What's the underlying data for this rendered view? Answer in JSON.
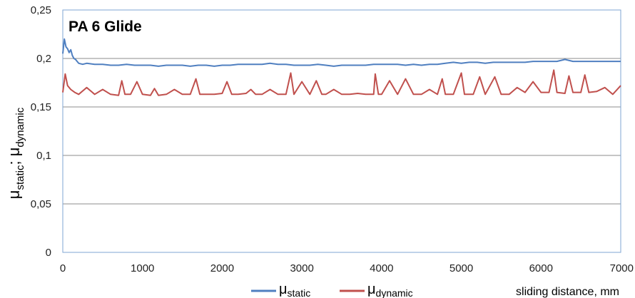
{
  "chart_data": {
    "type": "line",
    "title": "PA 6 Glide",
    "xlabel": "sliding distance, mm",
    "ylabel": {
      "mu": "μ",
      "sub1": "static",
      "sep": "; ",
      "sub2": "dynamic"
    },
    "xlim": [
      0,
      7000
    ],
    "ylim": [
      0,
      0.25
    ],
    "x_ticks": [
      0,
      1000,
      2000,
      3000,
      4000,
      5000,
      6000,
      7000
    ],
    "x_tick_labels": [
      "0",
      "1000",
      "2000",
      "3000",
      "4000",
      "5000",
      "6000",
      "7000"
    ],
    "y_ticks": [
      0,
      0.05,
      0.1,
      0.15,
      0.2,
      0.25
    ],
    "y_tick_labels": [
      "0",
      "0,05",
      "0,1",
      "0,15",
      "0,2",
      "0,25"
    ],
    "grid": "horizontal",
    "legend_position": "bottom",
    "series": [
      {
        "name": "μstatic",
        "name_mu": "μ",
        "name_sub": "static",
        "color": "#4f7fc0",
        "x": [
          0,
          20,
          40,
          60,
          80,
          100,
          120,
          140,
          160,
          180,
          200,
          250,
          300,
          400,
          500,
          600,
          700,
          800,
          900,
          1000,
          1100,
          1200,
          1300,
          1400,
          1500,
          1600,
          1700,
          1800,
          1900,
          2000,
          2100,
          2200,
          2300,
          2400,
          2500,
          2600,
          2700,
          2800,
          2900,
          3000,
          3100,
          3200,
          3300,
          3400,
          3500,
          3600,
          3700,
          3800,
          3900,
          4000,
          4100,
          4200,
          4300,
          4400,
          4500,
          4600,
          4700,
          4800,
          4900,
          5000,
          5100,
          5200,
          5300,
          5400,
          5500,
          5600,
          5700,
          5800,
          5900,
          6000,
          6100,
          6200,
          6300,
          6400,
          6500,
          6600,
          6700,
          6800,
          6900,
          7000
        ],
        "y": [
          0.205,
          0.22,
          0.212,
          0.21,
          0.206,
          0.209,
          0.203,
          0.2,
          0.199,
          0.197,
          0.195,
          0.194,
          0.195,
          0.194,
          0.194,
          0.193,
          0.193,
          0.194,
          0.193,
          0.193,
          0.193,
          0.192,
          0.193,
          0.193,
          0.193,
          0.192,
          0.193,
          0.193,
          0.192,
          0.193,
          0.193,
          0.194,
          0.194,
          0.194,
          0.194,
          0.195,
          0.194,
          0.194,
          0.193,
          0.193,
          0.193,
          0.194,
          0.193,
          0.192,
          0.193,
          0.193,
          0.193,
          0.193,
          0.194,
          0.194,
          0.194,
          0.194,
          0.193,
          0.194,
          0.193,
          0.194,
          0.194,
          0.195,
          0.196,
          0.195,
          0.196,
          0.196,
          0.195,
          0.196,
          0.196,
          0.196,
          0.196,
          0.196,
          0.197,
          0.197,
          0.197,
          0.197,
          0.199,
          0.197,
          0.197,
          0.197,
          0.197,
          0.197,
          0.197,
          0.197
        ]
      },
      {
        "name": "μdynamic",
        "name_mu": "μ",
        "name_sub": "dynamic",
        "color": "#c0504d",
        "x": [
          0,
          30,
          60,
          100,
          150,
          200,
          300,
          400,
          500,
          600,
          700,
          740,
          780,
          850,
          930,
          1000,
          1100,
          1150,
          1200,
          1300,
          1400,
          1500,
          1600,
          1670,
          1720,
          1800,
          1900,
          2000,
          2060,
          2120,
          2200,
          2300,
          2360,
          2420,
          2500,
          2600,
          2700,
          2800,
          2860,
          2900,
          3000,
          3100,
          3180,
          3250,
          3300,
          3400,
          3500,
          3600,
          3700,
          3800,
          3900,
          3920,
          3960,
          4000,
          4100,
          4200,
          4300,
          4400,
          4500,
          4600,
          4700,
          4760,
          4800,
          4900,
          5000,
          5040,
          5080,
          5150,
          5230,
          5300,
          5420,
          5500,
          5600,
          5700,
          5800,
          5900,
          6000,
          6100,
          6160,
          6200,
          6300,
          6350,
          6400,
          6500,
          6550,
          6600,
          6700,
          6800,
          6900,
          7000
        ],
        "y": [
          0.165,
          0.184,
          0.172,
          0.168,
          0.165,
          0.163,
          0.17,
          0.163,
          0.168,
          0.163,
          0.162,
          0.177,
          0.163,
          0.163,
          0.176,
          0.163,
          0.162,
          0.169,
          0.162,
          0.163,
          0.168,
          0.163,
          0.163,
          0.179,
          0.163,
          0.163,
          0.163,
          0.164,
          0.176,
          0.163,
          0.163,
          0.164,
          0.168,
          0.163,
          0.163,
          0.168,
          0.163,
          0.163,
          0.185,
          0.163,
          0.176,
          0.163,
          0.177,
          0.163,
          0.163,
          0.168,
          0.163,
          0.163,
          0.164,
          0.163,
          0.163,
          0.184,
          0.163,
          0.163,
          0.177,
          0.163,
          0.179,
          0.163,
          0.163,
          0.168,
          0.163,
          0.179,
          0.163,
          0.163,
          0.185,
          0.163,
          0.163,
          0.163,
          0.181,
          0.163,
          0.181,
          0.163,
          0.163,
          0.17,
          0.165,
          0.176,
          0.165,
          0.165,
          0.188,
          0.165,
          0.164,
          0.182,
          0.165,
          0.165,
          0.183,
          0.165,
          0.166,
          0.17,
          0.163,
          0.172
        ]
      }
    ]
  }
}
